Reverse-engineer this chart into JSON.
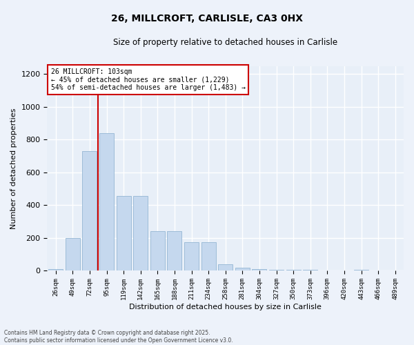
{
  "title1": "26, MILLCROFT, CARLISLE, CA3 0HX",
  "title2": "Size of property relative to detached houses in Carlisle",
  "xlabel": "Distribution of detached houses by size in Carlisle",
  "ylabel": "Number of detached properties",
  "categories": [
    "26sqm",
    "49sqm",
    "72sqm",
    "95sqm",
    "119sqm",
    "142sqm",
    "165sqm",
    "188sqm",
    "211sqm",
    "234sqm",
    "258sqm",
    "281sqm",
    "304sqm",
    "327sqm",
    "350sqm",
    "373sqm",
    "396sqm",
    "420sqm",
    "443sqm",
    "466sqm",
    "489sqm"
  ],
  "values": [
    10,
    200,
    730,
    840,
    455,
    455,
    240,
    240,
    175,
    175,
    40,
    20,
    10,
    5,
    5,
    5,
    0,
    0,
    5,
    0,
    0
  ],
  "bar_color": "#c5d8ee",
  "bar_edge_color": "#9dbcd8",
  "vline_color": "#cc0000",
  "vline_pos": 2.5,
  "annotation_line1": "26 MILLCROFT: 103sqm",
  "annotation_line2": "← 45% of detached houses are smaller (1,229)",
  "annotation_line3": "54% of semi-detached houses are larger (1,483) →",
  "annotation_box_color": "#cc0000",
  "annotation_bg": "#ffffff",
  "ylim": [
    0,
    1250
  ],
  "yticks": [
    0,
    200,
    400,
    600,
    800,
    1000,
    1200
  ],
  "bg_color": "#e8eff8",
  "grid_color": "#ffffff",
  "fig_bg_color": "#edf2fa",
  "footer1": "Contains HM Land Registry data © Crown copyright and database right 2025.",
  "footer2": "Contains public sector information licensed under the Open Government Licence v3.0."
}
